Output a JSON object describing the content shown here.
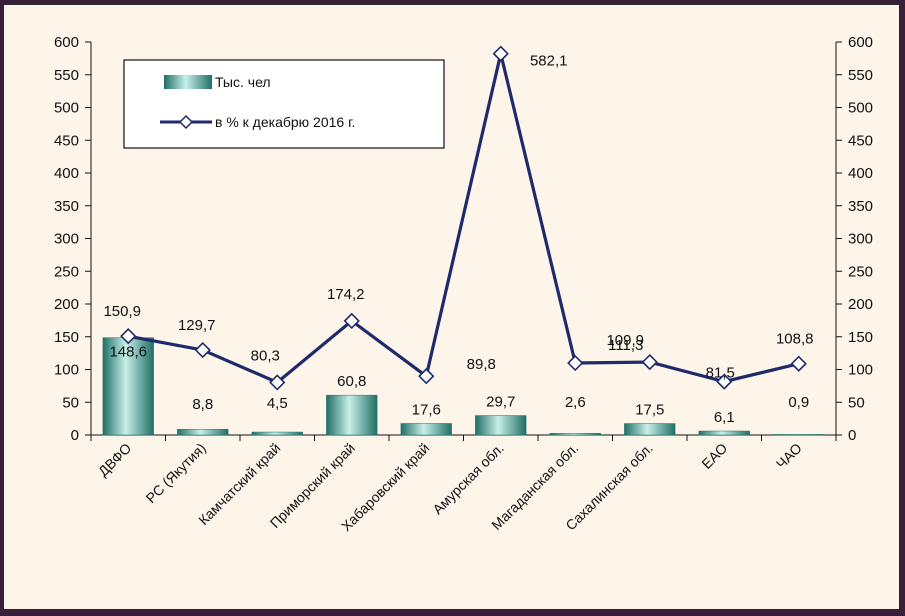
{
  "chart_data": {
    "type": "bar",
    "categories": [
      "ДВФО",
      "РС (Якутия)",
      "Камчатский край",
      "Приморский край",
      "Хабаровский край",
      "Амурская обл.",
      "Магаданская обл.",
      "Сахалинская обл.",
      "ЕАО",
      "ЧАО"
    ],
    "series": [
      {
        "name": "Тыс. чел",
        "type": "bar",
        "axis": "left",
        "values": [
          148.6,
          8.8,
          4.5,
          60.8,
          17.6,
          29.7,
          2.6,
          17.5,
          6.1,
          0.9
        ],
        "labels": [
          "148,6",
          "8,8",
          "4,5",
          "60,8",
          "17,6",
          "29,7",
          "2,6",
          "17,5",
          "6,1",
          "0,9"
        ],
        "color": "#3f9f95"
      },
      {
        "name": "в % к декабрю 2016 г.",
        "type": "line",
        "axis": "right",
        "values": [
          150.9,
          129.7,
          80.3,
          174.2,
          89.8,
          582.1,
          109.9,
          111.3,
          81.5,
          108.8
        ],
        "labels": [
          "150,9",
          "129,7",
          "80,3",
          "174,2",
          "89,8",
          "582,1",
          "109,9",
          "111,3",
          "81,5",
          "108,8"
        ],
        "color": "#1f2a6b"
      }
    ],
    "ylim": [
      0,
      600
    ],
    "y2lim": [
      0,
      600
    ],
    "yticks": [
      "0",
      "50",
      "100",
      "150",
      "200",
      "250",
      "300",
      "350",
      "400",
      "450",
      "500",
      "550",
      "600"
    ],
    "legend_position": "top-left",
    "grid": false
  }
}
